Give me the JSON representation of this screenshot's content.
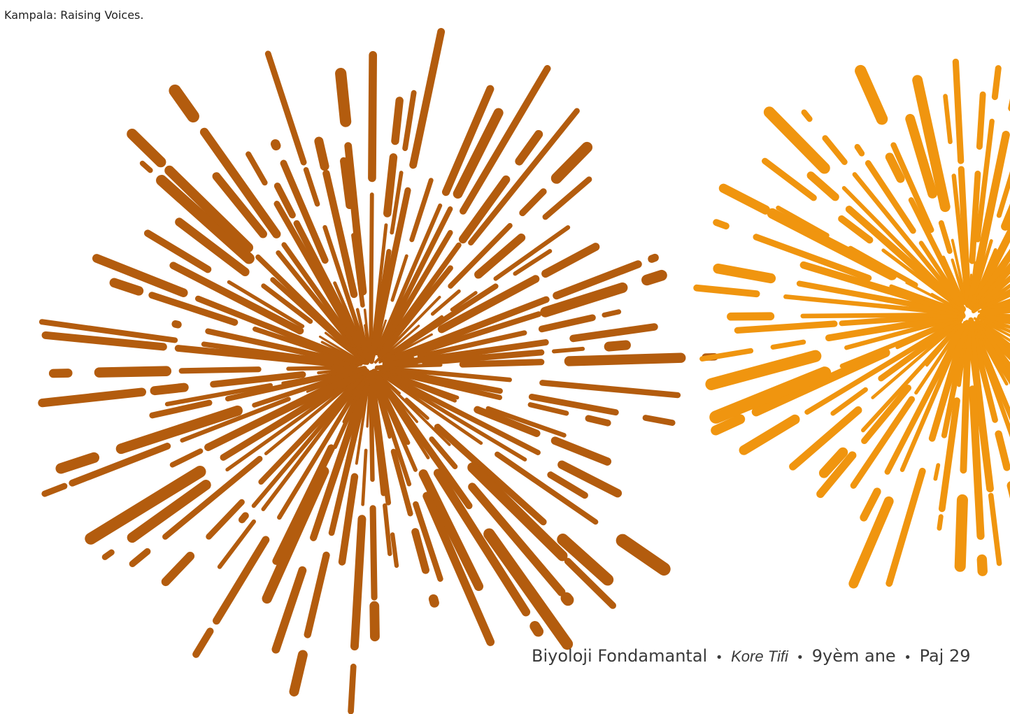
{
  "header": {
    "citation": "Kampala: Raising Voices."
  },
  "footer": {
    "course": "Biyoloji Fondamantal",
    "separator": "•",
    "book": "Kore Tifi",
    "grade": "9yèm ane",
    "page": "Paj 29"
  }
}
